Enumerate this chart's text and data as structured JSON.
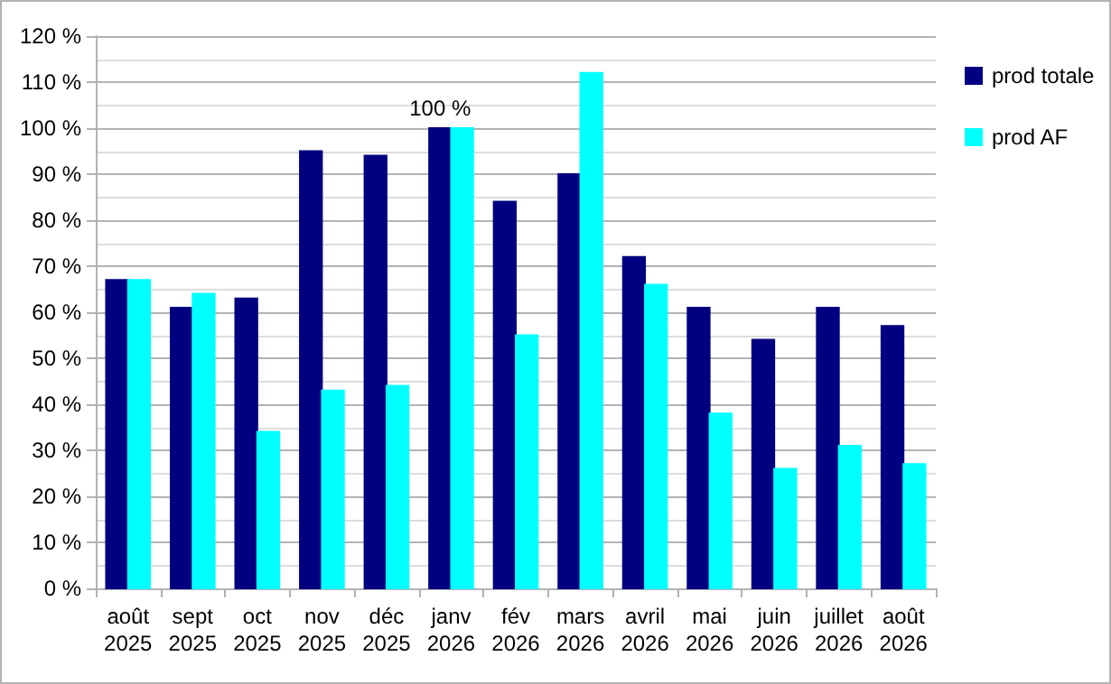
{
  "chart_data": {
    "type": "bar",
    "categories": [
      "août\n2025",
      "sept\n2025",
      "oct\n2025",
      "nov\n2025",
      "déc\n2025",
      "janv\n2026",
      "fév\n2026",
      "mars\n2026",
      "avril\n2026",
      "mai\n2026",
      "juin\n2026",
      "juillet\n2026",
      "août\n2026"
    ],
    "series": [
      {
        "name": "prod totale",
        "color": "#000080",
        "values": [
          67,
          61,
          63,
          95,
          94,
          100,
          84,
          90,
          72,
          61,
          54,
          61,
          57
        ]
      },
      {
        "name": "prod AF",
        "color": "#00ffff",
        "values": [
          67,
          64,
          34,
          43,
          44,
          100,
          55,
          112,
          66,
          38,
          26,
          31,
          27
        ]
      }
    ],
    "ylim": [
      0,
      120
    ],
    "yticks": [
      {
        "value": 0,
        "label": "0 %"
      },
      {
        "value": 5,
        "label": null
      },
      {
        "value": 10,
        "label": "10 %"
      },
      {
        "value": 15,
        "label": null
      },
      {
        "value": 20,
        "label": "20 %"
      },
      {
        "value": 25,
        "label": null
      },
      {
        "value": 30,
        "label": "30 %"
      },
      {
        "value": 35,
        "label": null
      },
      {
        "value": 40,
        "label": "40 %"
      },
      {
        "value": 45,
        "label": null
      },
      {
        "value": 50,
        "label": "50 %"
      },
      {
        "value": 55,
        "label": null
      },
      {
        "value": 60,
        "label": "60 %"
      },
      {
        "value": 65,
        "label": null
      },
      {
        "value": 70,
        "label": "70 %"
      },
      {
        "value": 75,
        "label": null
      },
      {
        "value": 80,
        "label": "80 %"
      },
      {
        "value": 85,
        "label": null
      },
      {
        "value": 90,
        "label": "90 %"
      },
      {
        "value": 95,
        "label": null
      },
      {
        "value": 100,
        "label": "100 %"
      },
      {
        "value": 105,
        "label": null
      },
      {
        "value": 110,
        "label": "110 %"
      },
      {
        "value": 115,
        "label": null
      },
      {
        "value": 120,
        "label": "120 %"
      }
    ],
    "annotations": [
      {
        "text": "100 %",
        "x": "janv\n2026",
        "y": 100
      }
    ],
    "grid": "y",
    "legend": "top right"
  }
}
